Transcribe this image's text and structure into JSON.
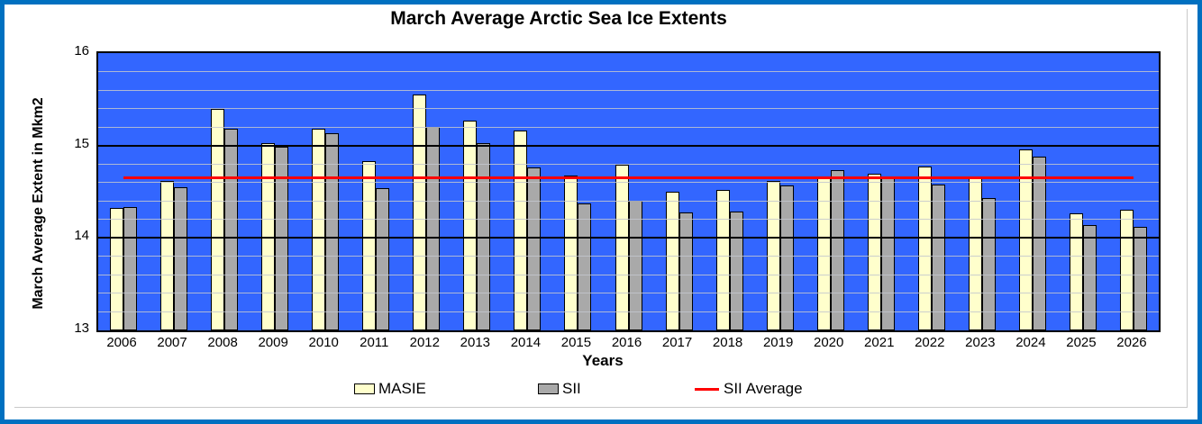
{
  "title": "March Average Arctic Sea Ice Extents",
  "colors": {
    "frame_border": "#0070C0",
    "plot_background": "#3366FF",
    "masie_fill": "#FFFFCC",
    "sii_fill": "#A9A9A9",
    "bar_border": "#000000",
    "minor_gridline": "#C3C7CE",
    "major_gridline": "#000000",
    "sii_average_line": "#FF0000",
    "text": "#000000"
  },
  "legend": {
    "masie_label": "MASIE",
    "sii_label": "SII",
    "sii_average_label": "SII Average"
  },
  "chart_data": {
    "type": "bar",
    "title": "March Average Arctic Sea Ice Extents",
    "xlabel": "Years",
    "ylabel": "March Average Extent in Mkm2",
    "ylim": [
      13,
      16
    ],
    "y_major_ticks": [
      16,
      15,
      14,
      13
    ],
    "y_minor_step": 0.2,
    "grid": "major black horizontal + minor light horizontal, drawn over bars",
    "legend_position": "bottom",
    "categories": [
      "2006",
      "2007",
      "2008",
      "2009",
      "2010",
      "2011",
      "2012",
      "2013",
      "2014",
      "2015",
      "2016",
      "2017",
      "2018",
      "2019",
      "2020",
      "2021",
      "2022",
      "2023",
      "2024",
      "2025",
      "2026"
    ],
    "series": [
      {
        "name": "MASIE",
        "values": [
          14.32,
          14.62,
          15.4,
          15.03,
          15.18,
          14.83,
          15.55,
          15.27,
          15.16,
          14.68,
          14.79,
          14.5,
          14.52,
          14.62,
          14.65,
          14.69,
          14.77,
          14.65,
          14.96,
          14.27,
          14.31
        ]
      },
      {
        "name": "SII",
        "values": [
          14.33,
          14.55,
          15.18,
          14.99,
          15.13,
          14.54,
          15.2,
          15.03,
          14.76,
          14.37,
          14.4,
          14.28,
          14.29,
          14.57,
          14.73,
          14.66,
          14.58,
          14.43,
          14.88,
          14.14,
          14.12
        ]
      }
    ],
    "sii_average": 14.65
  }
}
